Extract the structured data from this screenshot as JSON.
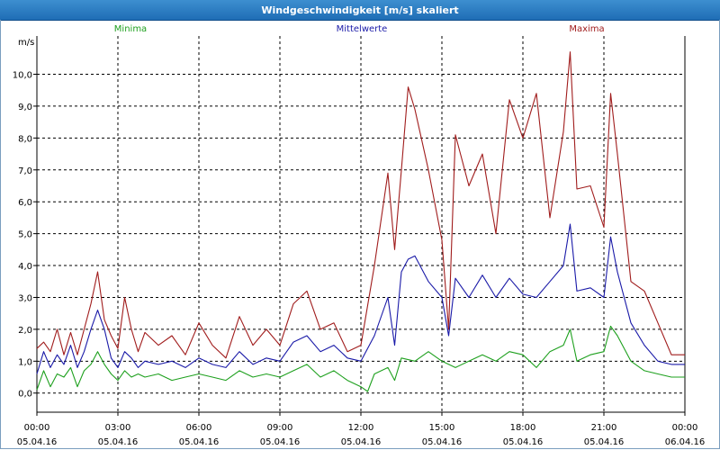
{
  "window": {
    "title": "Windgeschwindigkeit [m/s] skaliert"
  },
  "colors": {
    "minima": "#1ea01e",
    "mittelwerte": "#1a1aa8",
    "maxima": "#a01c1c",
    "grid": "#000000"
  },
  "chart_data": {
    "type": "line",
    "title": "Windgeschwindigkeit [m/s] skaliert",
    "ylabel": "m/s",
    "ylim": [
      -0.6,
      11.2
    ],
    "xlim": [
      0,
      24
    ],
    "yticks": [
      0,
      1,
      2,
      3,
      4,
      5,
      6,
      7,
      8,
      9,
      10
    ],
    "ytick_labels": [
      "0,0",
      "1,0",
      "2,0",
      "3,0",
      "4,0",
      "5,0",
      "6,0",
      "7,0",
      "8,0",
      "9,0",
      "10,0"
    ],
    "xticks": [
      0,
      3,
      6,
      9,
      12,
      15,
      18,
      21,
      24
    ],
    "xtick_times": [
      "00:00",
      "03:00",
      "06:00",
      "09:00",
      "12:00",
      "15:00",
      "18:00",
      "21:00",
      "00:00"
    ],
    "xtick_dates": [
      "05.04.16",
      "05.04.16",
      "05.04.16",
      "05.04.16",
      "05.04.16",
      "05.04.16",
      "05.04.16",
      "05.04.16",
      "06.04.16"
    ],
    "series": [
      {
        "name": "Minima",
        "color": "#1ea01e",
        "points": [
          [
            0,
            0.1
          ],
          [
            0.25,
            0.7
          ],
          [
            0.5,
            0.2
          ],
          [
            0.75,
            0.6
          ],
          [
            1,
            0.5
          ],
          [
            1.25,
            0.8
          ],
          [
            1.5,
            0.2
          ],
          [
            1.75,
            0.7
          ],
          [
            2,
            0.9
          ],
          [
            2.25,
            1.3
          ],
          [
            2.5,
            0.9
          ],
          [
            2.75,
            0.6
          ],
          [
            3,
            0.4
          ],
          [
            3.25,
            0.7
          ],
          [
            3.5,
            0.5
          ],
          [
            3.75,
            0.6
          ],
          [
            4,
            0.5
          ],
          [
            4.5,
            0.6
          ],
          [
            5,
            0.4
          ],
          [
            5.5,
            0.5
          ],
          [
            6,
            0.6
          ],
          [
            6.5,
            0.5
          ],
          [
            7,
            0.4
          ],
          [
            7.5,
            0.7
          ],
          [
            8,
            0.5
          ],
          [
            8.5,
            0.6
          ],
          [
            9,
            0.5
          ],
          [
            9.5,
            0.7
          ],
          [
            10,
            0.9
          ],
          [
            10.5,
            0.5
          ],
          [
            11,
            0.7
          ],
          [
            11.5,
            0.4
          ],
          [
            12,
            0.2
          ],
          [
            12.25,
            0.05
          ],
          [
            12.5,
            0.6
          ],
          [
            13,
            0.8
          ],
          [
            13.25,
            0.4
          ],
          [
            13.5,
            1.1
          ],
          [
            14,
            1.0
          ],
          [
            14.5,
            1.3
          ],
          [
            15,
            1.0
          ],
          [
            15.5,
            0.8
          ],
          [
            16,
            1.0
          ],
          [
            16.5,
            1.2
          ],
          [
            17,
            1.0
          ],
          [
            17.5,
            1.3
          ],
          [
            18,
            1.2
          ],
          [
            18.5,
            0.8
          ],
          [
            19,
            1.3
          ],
          [
            19.5,
            1.5
          ],
          [
            19.75,
            2.0
          ],
          [
            20,
            1.0
          ],
          [
            20.5,
            1.2
          ],
          [
            21,
            1.3
          ],
          [
            21.25,
            2.1
          ],
          [
            21.5,
            1.8
          ],
          [
            22,
            1.0
          ],
          [
            22.5,
            0.7
          ],
          [
            23,
            0.6
          ],
          [
            23.5,
            0.5
          ],
          [
            24,
            0.5
          ]
        ]
      },
      {
        "name": "Mittelwerte",
        "color": "#1a1aa8",
        "points": [
          [
            0,
            0.6
          ],
          [
            0.25,
            1.3
          ],
          [
            0.5,
            0.8
          ],
          [
            0.75,
            1.2
          ],
          [
            1,
            0.9
          ],
          [
            1.25,
            1.5
          ],
          [
            1.5,
            0.8
          ],
          [
            1.75,
            1.3
          ],
          [
            2,
            2.0
          ],
          [
            2.25,
            2.6
          ],
          [
            2.5,
            2.0
          ],
          [
            2.75,
            1.1
          ],
          [
            3,
            0.8
          ],
          [
            3.25,
            1.3
          ],
          [
            3.5,
            1.1
          ],
          [
            3.75,
            0.8
          ],
          [
            4,
            1.0
          ],
          [
            4.5,
            0.9
          ],
          [
            5,
            1.0
          ],
          [
            5.5,
            0.8
          ],
          [
            6,
            1.1
          ],
          [
            6.5,
            0.9
          ],
          [
            7,
            0.8
          ],
          [
            7.5,
            1.3
          ],
          [
            8,
            0.9
          ],
          [
            8.5,
            1.1
          ],
          [
            9,
            1.0
          ],
          [
            9.5,
            1.6
          ],
          [
            10,
            1.8
          ],
          [
            10.5,
            1.3
          ],
          [
            11,
            1.5
          ],
          [
            11.5,
            1.1
          ],
          [
            12,
            1.0
          ],
          [
            12.5,
            1.8
          ],
          [
            13,
            3.0
          ],
          [
            13.25,
            1.5
          ],
          [
            13.5,
            3.8
          ],
          [
            13.75,
            4.2
          ],
          [
            14,
            4.3
          ],
          [
            14.5,
            3.5
          ],
          [
            15,
            3.0
          ],
          [
            15.25,
            1.8
          ],
          [
            15.5,
            3.6
          ],
          [
            16,
            3.0
          ],
          [
            16.5,
            3.7
          ],
          [
            17,
            3.0
          ],
          [
            17.5,
            3.6
          ],
          [
            18,
            3.1
          ],
          [
            18.5,
            3.0
          ],
          [
            19,
            3.5
          ],
          [
            19.5,
            4.0
          ],
          [
            19.75,
            5.3
          ],
          [
            20,
            3.2
          ],
          [
            20.5,
            3.3
          ],
          [
            21,
            3.0
          ],
          [
            21.25,
            4.9
          ],
          [
            21.5,
            3.8
          ],
          [
            22,
            2.2
          ],
          [
            22.5,
            1.5
          ],
          [
            23,
            1.0
          ],
          [
            23.5,
            0.9
          ],
          [
            24,
            0.9
          ]
        ]
      },
      {
        "name": "Maxima",
        "color": "#a01c1c",
        "points": [
          [
            0,
            1.4
          ],
          [
            0.25,
            1.6
          ],
          [
            0.5,
            1.3
          ],
          [
            0.75,
            2.0
          ],
          [
            1,
            1.2
          ],
          [
            1.25,
            1.9
          ],
          [
            1.5,
            1.2
          ],
          [
            1.75,
            2.0
          ],
          [
            2,
            2.8
          ],
          [
            2.25,
            3.8
          ],
          [
            2.5,
            2.3
          ],
          [
            2.75,
            1.8
          ],
          [
            3,
            1.4
          ],
          [
            3.25,
            3.0
          ],
          [
            3.5,
            2.0
          ],
          [
            3.75,
            1.3
          ],
          [
            4,
            1.9
          ],
          [
            4.5,
            1.5
          ],
          [
            5,
            1.8
          ],
          [
            5.5,
            1.2
          ],
          [
            6,
            2.2
          ],
          [
            6.5,
            1.5
          ],
          [
            7,
            1.1
          ],
          [
            7.5,
            2.4
          ],
          [
            8,
            1.5
          ],
          [
            8.5,
            2.0
          ],
          [
            9,
            1.5
          ],
          [
            9.5,
            2.8
          ],
          [
            10,
            3.2
          ],
          [
            10.5,
            2.0
          ],
          [
            11,
            2.2
          ],
          [
            11.5,
            1.3
          ],
          [
            12,
            1.5
          ],
          [
            12.5,
            4.0
          ],
          [
            13,
            6.9
          ],
          [
            13.25,
            4.5
          ],
          [
            13.5,
            7.0
          ],
          [
            13.75,
            9.6
          ],
          [
            14,
            8.9
          ],
          [
            14.5,
            7.0
          ],
          [
            15,
            4.8
          ],
          [
            15.25,
            2.0
          ],
          [
            15.5,
            8.1
          ],
          [
            16,
            6.5
          ],
          [
            16.5,
            7.5
          ],
          [
            17,
            5.0
          ],
          [
            17.5,
            9.2
          ],
          [
            18,
            8.0
          ],
          [
            18.5,
            9.4
          ],
          [
            19,
            5.5
          ],
          [
            19.5,
            8.2
          ],
          [
            19.75,
            10.7
          ],
          [
            20,
            6.4
          ],
          [
            20.5,
            6.5
          ],
          [
            21,
            5.2
          ],
          [
            21.25,
            9.4
          ],
          [
            21.5,
            7.5
          ],
          [
            22,
            3.5
          ],
          [
            22.5,
            3.2
          ],
          [
            23,
            2.2
          ],
          [
            23.5,
            1.2
          ],
          [
            24,
            1.2
          ]
        ]
      }
    ]
  }
}
